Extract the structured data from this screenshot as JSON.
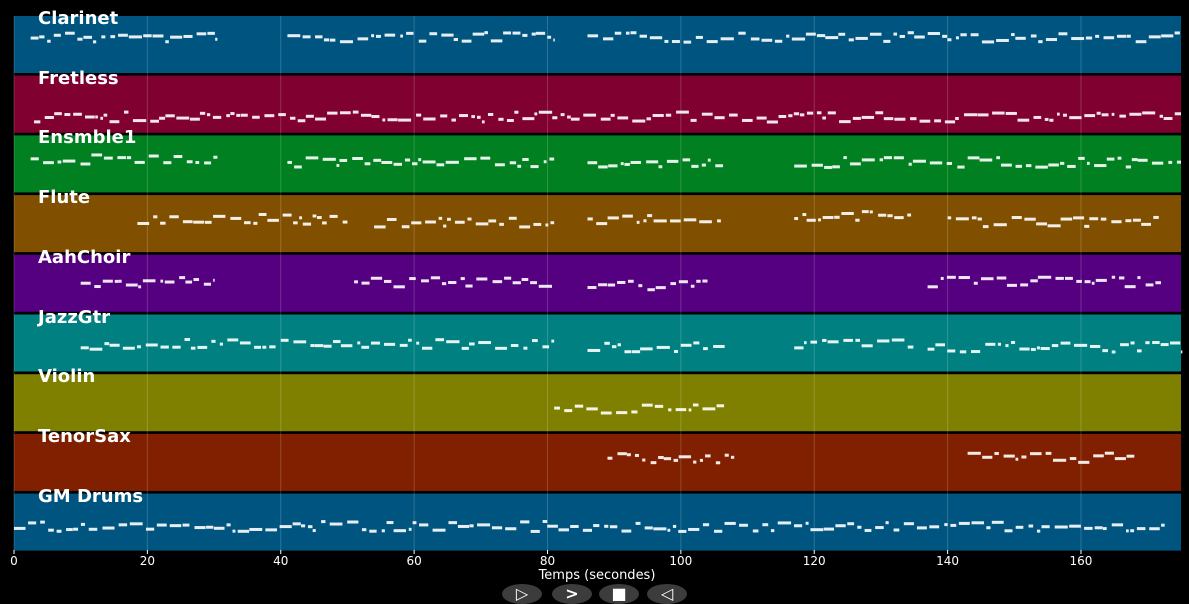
{
  "chart_data": {
    "type": "piano-roll",
    "xlabel": "Temps (secondes)",
    "xlim": [
      0,
      175
    ],
    "xticks": [
      0,
      20,
      40,
      60,
      80,
      100,
      120,
      140,
      160
    ],
    "grid": true,
    "tracks": [
      {
        "name": "Clarinet",
        "color": "#005580",
        "segments": [
          [
            2.5,
            30.5,
            0.65
          ],
          [
            41,
            81,
            0.65
          ],
          [
            86,
            175,
            0.65
          ]
        ]
      },
      {
        "name": "Fretless",
        "color": "#800030",
        "segments": [
          [
            3,
            175,
            0.3
          ]
        ]
      },
      {
        "name": "Ensmble1",
        "color": "#008020",
        "segments": [
          [
            2.5,
            30.5,
            0.6
          ],
          [
            41,
            81,
            0.55
          ],
          [
            86,
            106.5,
            0.55
          ],
          [
            117,
            175,
            0.55
          ]
        ]
      },
      {
        "name": "Flute",
        "color": "#805000",
        "segments": [
          [
            18.5,
            50,
            0.6
          ],
          [
            54,
            81,
            0.55
          ],
          [
            86,
            106,
            0.6
          ],
          [
            117,
            135,
            0.65
          ],
          [
            140,
            172,
            0.55
          ]
        ]
      },
      {
        "name": "AahChoir",
        "color": "#550080",
        "segments": [
          [
            10,
            30,
            0.55
          ],
          [
            51,
            81,
            0.55
          ],
          [
            86,
            104.5,
            0.5
          ],
          [
            137,
            172,
            0.55
          ]
        ]
      },
      {
        "name": "JazzGtr",
        "color": "#008080",
        "segments": [
          [
            10,
            81,
            0.5
          ],
          [
            86,
            107,
            0.45
          ],
          [
            117,
            135,
            0.5
          ],
          [
            137,
            175,
            0.45
          ]
        ]
      },
      {
        "name": "Violin",
        "color": "#808000",
        "segments": [
          [
            81,
            106.5,
            0.4
          ]
        ]
      },
      {
        "name": "TenorSax",
        "color": "#802000",
        "segments": [
          [
            89,
            108,
            0.6
          ],
          [
            143,
            168,
            0.6
          ]
        ]
      },
      {
        "name": "GM Drums",
        "color": "#005580",
        "segments": [
          [
            0,
            173,
            0.45
          ]
        ]
      }
    ]
  },
  "controls": {
    "play": "▷",
    "forward": ">",
    "stop": "■",
    "back": "◁"
  }
}
